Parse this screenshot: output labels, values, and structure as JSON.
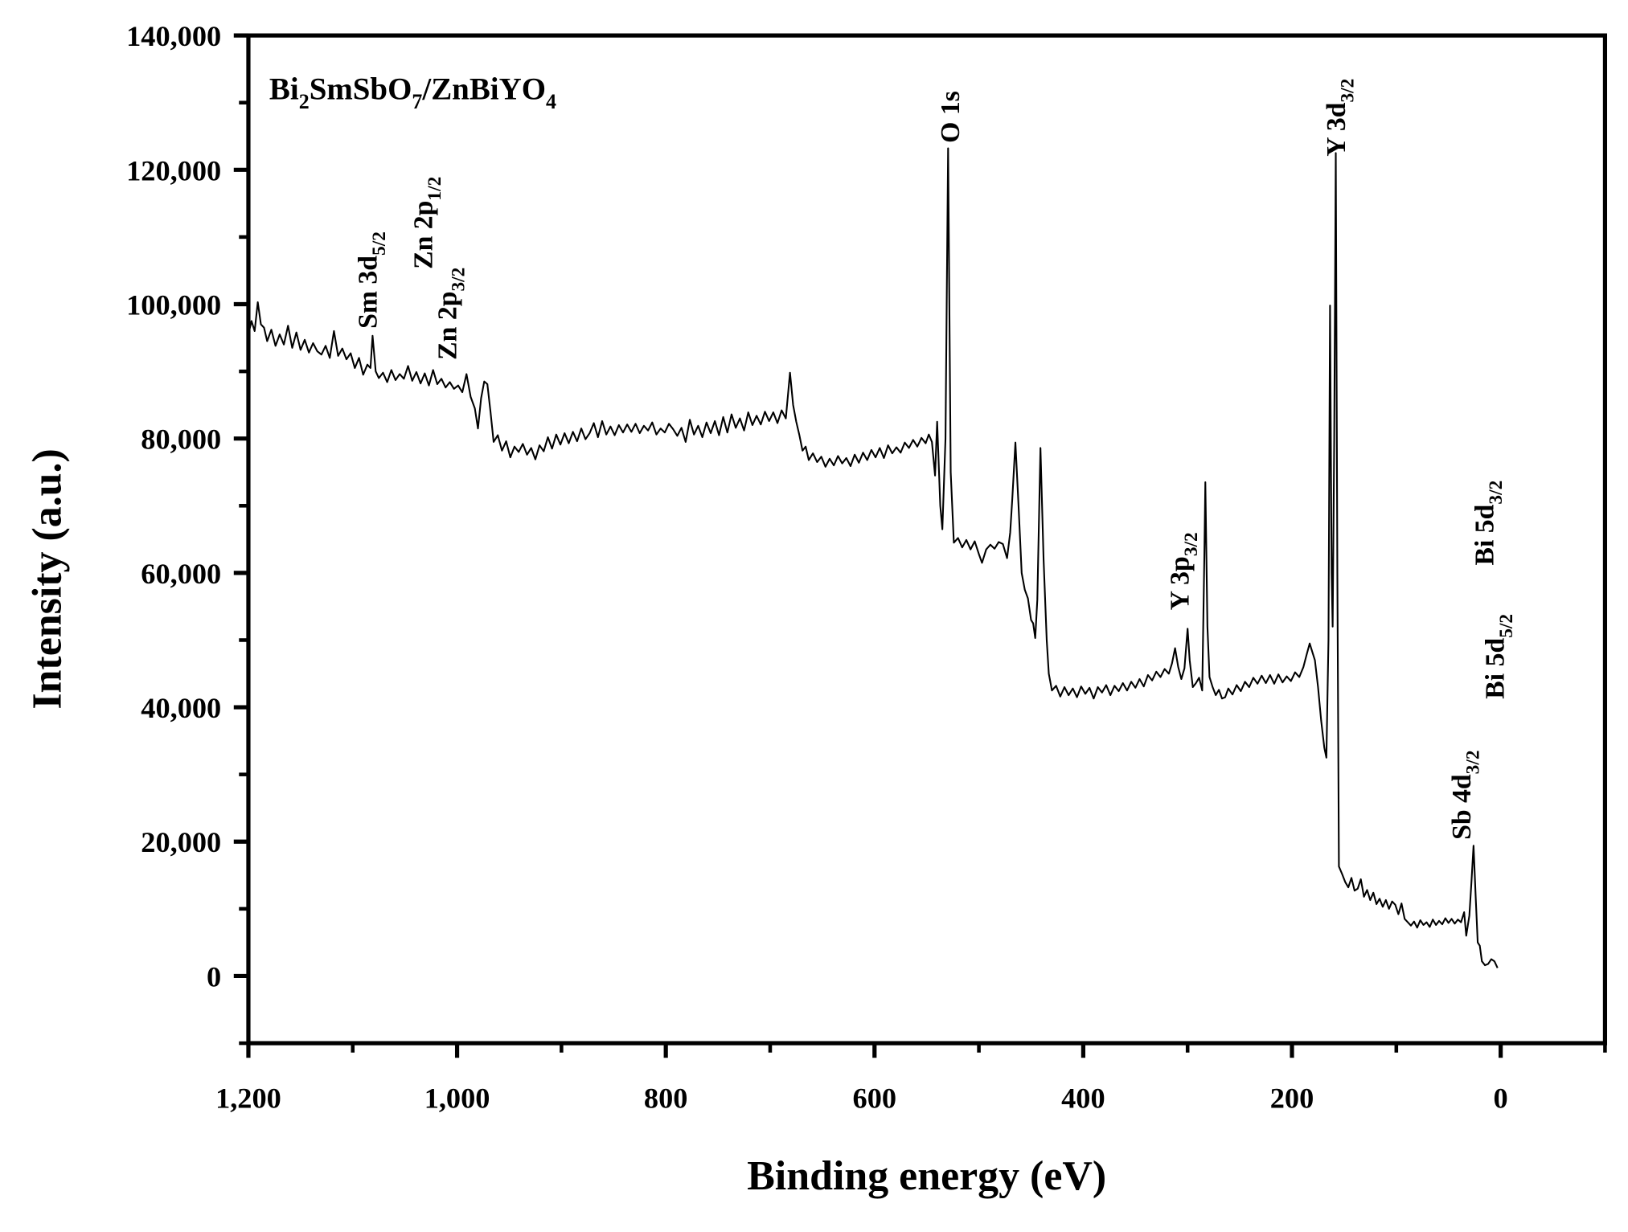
{
  "chart_data": {
    "type": "line",
    "title": [
      {
        "text": "Bi"
      },
      {
        "text": "2",
        "sub": true
      },
      {
        "text": "SmSbO"
      },
      {
        "text": "7",
        "sub": true
      },
      {
        "text": "/ZnBiYO"
      },
      {
        "text": "4",
        "sub": true
      }
    ],
    "x_label": "Binding energy (eV)",
    "y_label": "Intensity (a.u.)",
    "color": "#000000",
    "xlim": [
      1200,
      -100
    ],
    "ylim": [
      -10000,
      140000
    ],
    "xticks": [
      {
        "value": 1200,
        "label": "1,200"
      },
      {
        "value": 1000,
        "label": "1,000"
      },
      800,
      600,
      400,
      200,
      0
    ],
    "xminor_ticks": [
      1100,
      900,
      700,
      500,
      300,
      100,
      -100
    ],
    "yticks": [
      0,
      {
        "value": 20000,
        "label": "20,000"
      },
      {
        "value": 40000,
        "label": "40,000"
      },
      {
        "value": 60000,
        "label": "60,000"
      },
      {
        "value": 80000,
        "label": "80,000"
      },
      {
        "value": 100000,
        "label": "100,000"
      },
      {
        "value": 120000,
        "label": "120,000"
      },
      {
        "value": 140000,
        "label": "140,000"
      }
    ],
    "yminor_ticks": [
      -10000,
      10000,
      30000,
      50000,
      70000,
      90000,
      110000,
      130000
    ],
    "annotations": [
      {
        "text": "Sm 3d",
        "sub": "5/2"
      },
      {
        "text": "Zn 2p",
        "sub": "1/2"
      },
      {
        "text": "Zn 2p",
        "sub": "3/2"
      },
      {
        "text": "O 1s"
      },
      {
        "text": "Y 3d",
        "sub": "3/2"
      },
      {
        "text": "Y 3p",
        "sub": "3/2"
      },
      {
        "text": "Bi 5d",
        "sub": "3/2"
      },
      {
        "text": "Bi 5d",
        "sub": "5/2"
      },
      {
        "text": "Sb 4d",
        "sub": "3/2"
      }
    ],
    "x": [
      1200,
      1197,
      1194,
      1191,
      1188,
      1185,
      1182,
      1178,
      1174,
      1170,
      1166,
      1162,
      1158,
      1154,
      1150,
      1146,
      1142,
      1138,
      1134,
      1130,
      1126,
      1122,
      1118,
      1114,
      1110,
      1106,
      1102,
      1098,
      1094,
      1090,
      1086,
      1083,
      1081,
      1078,
      1075,
      1071,
      1067,
      1063,
      1059,
      1055,
      1051,
      1047,
      1043,
      1039,
      1035,
      1031,
      1027,
      1023,
      1019,
      1015,
      1011,
      1007,
      1003,
      999,
      995,
      991,
      987,
      983,
      980,
      977,
      974,
      971,
      968,
      965,
      961,
      957,
      953,
      949,
      945,
      941,
      937,
      933,
      929,
      925,
      921,
      917,
      913,
      909,
      905,
      901,
      897,
      893,
      889,
      885,
      881,
      877,
      873,
      869,
      865,
      861,
      857,
      853,
      849,
      845,
      841,
      837,
      833,
      829,
      825,
      821,
      817,
      813,
      809,
      805,
      801,
      797,
      793,
      789,
      785,
      781,
      777,
      773,
      769,
      765,
      761,
      757,
      753,
      749,
      745,
      741,
      737,
      733,
      729,
      725,
      721,
      717,
      713,
      709,
      705,
      701,
      697,
      693,
      689,
      685,
      681,
      678,
      675,
      672,
      669,
      666,
      663,
      659,
      655,
      651,
      647,
      643,
      639,
      635,
      631,
      627,
      623,
      619,
      615,
      611,
      607,
      603,
      599,
      595,
      591,
      587,
      583,
      579,
      575,
      571,
      567,
      563,
      559,
      555,
      551,
      548,
      545,
      542,
      540,
      537,
      535,
      532,
      529.5,
      527,
      524,
      520,
      516,
      512,
      508,
      504,
      500,
      497,
      493,
      489,
      485,
      481,
      477,
      473,
      470,
      468,
      465,
      462,
      459,
      456,
      453,
      450,
      448,
      446,
      444,
      441,
      438,
      435,
      433,
      430,
      426,
      422,
      418,
      414,
      410,
      406,
      402,
      398,
      394,
      390,
      386,
      382,
      378,
      374,
      370,
      366,
      362,
      358,
      354,
      350,
      346,
      342,
      338,
      334,
      330,
      326,
      322,
      318,
      315,
      312,
      309,
      306,
      303,
      300,
      298,
      295,
      292,
      289,
      286,
      284,
      283,
      281,
      279,
      276,
      273,
      270,
      267,
      264,
      261,
      257,
      253,
      249,
      245,
      241,
      237,
      233,
      229,
      225,
      221,
      217,
      213,
      209,
      205,
      201,
      197,
      193,
      189,
      186,
      183,
      181,
      178,
      175,
      172,
      169,
      167,
      165,
      163.5,
      162,
      161,
      159.5,
      158,
      156.5,
      155,
      152,
      149,
      146,
      143,
      140,
      137,
      134,
      131,
      128,
      125,
      122,
      119,
      116,
      113,
      110,
      107,
      104,
      101,
      98,
      95,
      92,
      89,
      86,
      83,
      80,
      77,
      74,
      71,
      68,
      65,
      62,
      59,
      56,
      53,
      50,
      47,
      44,
      41,
      38,
      35,
      33,
      30,
      28,
      26,
      24,
      22,
      20,
      18,
      15,
      12,
      9,
      6,
      3
    ],
    "values": [
      95500,
      97500,
      96000,
      100300,
      97000,
      96500,
      94500,
      96200,
      93800,
      95500,
      94000,
      96800,
      93500,
      95800,
      93200,
      94700,
      92800,
      94200,
      93000,
      92500,
      93800,
      92000,
      96000,
      92300,
      93400,
      91800,
      92700,
      90500,
      92000,
      89500,
      91000,
      90500,
      95300,
      90000,
      89000,
      89800,
      88400,
      90200,
      88700,
      89600,
      88900,
      90800,
      88600,
      89900,
      88200,
      89700,
      87900,
      90200,
      88100,
      88900,
      87600,
      88400,
      87400,
      87900,
      86900,
      89600,
      86200,
      84500,
      81500,
      86000,
      88500,
      88100,
      84000,
      79500,
      80500,
      78200,
      79600,
      77200,
      78800,
      78000,
      79200,
      77600,
      78600,
      76900,
      79000,
      78100,
      80200,
      78500,
      80600,
      79100,
      80800,
      79300,
      81000,
      79600,
      81500,
      79900,
      80800,
      82300,
      80200,
      82600,
      80600,
      81800,
      80500,
      82000,
      80900,
      82100,
      81000,
      82200,
      80800,
      81900,
      81200,
      82400,
      80600,
      81500,
      80900,
      82200,
      81400,
      80400,
      81600,
      79500,
      82800,
      80600,
      81900,
      80200,
      82400,
      80800,
      82600,
      80500,
      83200,
      80900,
      83600,
      81600,
      83000,
      81200,
      83900,
      82000,
      83400,
      82100,
      84000,
      82600,
      83900,
      82300,
      84200,
      83000,
      89800,
      85000,
      82500,
      80500,
      78200,
      78800,
      76800,
      77800,
      76500,
      77300,
      75800,
      77000,
      76000,
      77400,
      76300,
      77100,
      75900,
      77600,
      76400,
      77900,
      76800,
      78300,
      77200,
      78600,
      77100,
      79000,
      77800,
      78700,
      77900,
      79400,
      78600,
      79800,
      78800,
      80100,
      79300,
      80600,
      79500,
      74500,
      82500,
      70000,
      66500,
      80000,
      123200,
      75000,
      64500,
      65200,
      63800,
      64900,
      63500,
      64700,
      62800,
      61500,
      63500,
      64200,
      63600,
      64600,
      64300,
      62200,
      66000,
      71000,
      79400,
      70000,
      60000,
      57500,
      56200,
      53000,
      52500,
      50300,
      56000,
      78600,
      62000,
      50000,
      45000,
      42500,
      43200,
      41600,
      43000,
      41800,
      42800,
      41500,
      43100,
      42000,
      42900,
      41300,
      43000,
      42200,
      43300,
      41800,
      43200,
      42400,
      43600,
      42500,
      43800,
      42900,
      44200,
      43100,
      44800,
      44000,
      45300,
      44500,
      45700,
      45000,
      46500,
      48800,
      46000,
      44200,
      45800,
      51700,
      47000,
      43000,
      43600,
      44400,
      42500,
      62000,
      73500,
      52000,
      44500,
      43000,
      41800,
      42600,
      41300,
      41500,
      42800,
      41900,
      43300,
      42400,
      43800,
      43000,
      44400,
      43500,
      44700,
      43600,
      44800,
      43500,
      44900,
      43700,
      44600,
      43900,
      45200,
      44500,
      46000,
      47800,
      49500,
      48500,
      47000,
      43000,
      38000,
      34000,
      32500,
      50000,
      99800,
      60000,
      52000,
      80000,
      122500,
      60000,
      16300,
      15200,
      14000,
      13200,
      14600,
      12700,
      13000,
      14400,
      11800,
      12800,
      11300,
      12400,
      10700,
      11500,
      10300,
      11300,
      10000,
      11100,
      10600,
      9200,
      10800,
      8500,
      8000,
      7500,
      8100,
      7200,
      8300,
      7600,
      8000,
      7300,
      8400,
      7600,
      8200,
      7700,
      8600,
      7900,
      8500,
      7800,
      8400,
      8000,
      9500,
      6000,
      9000,
      14000,
      19400,
      12000,
      5000,
      4500,
      2200,
      1600,
      1800,
      2500,
      2200,
      1200
    ]
  }
}
